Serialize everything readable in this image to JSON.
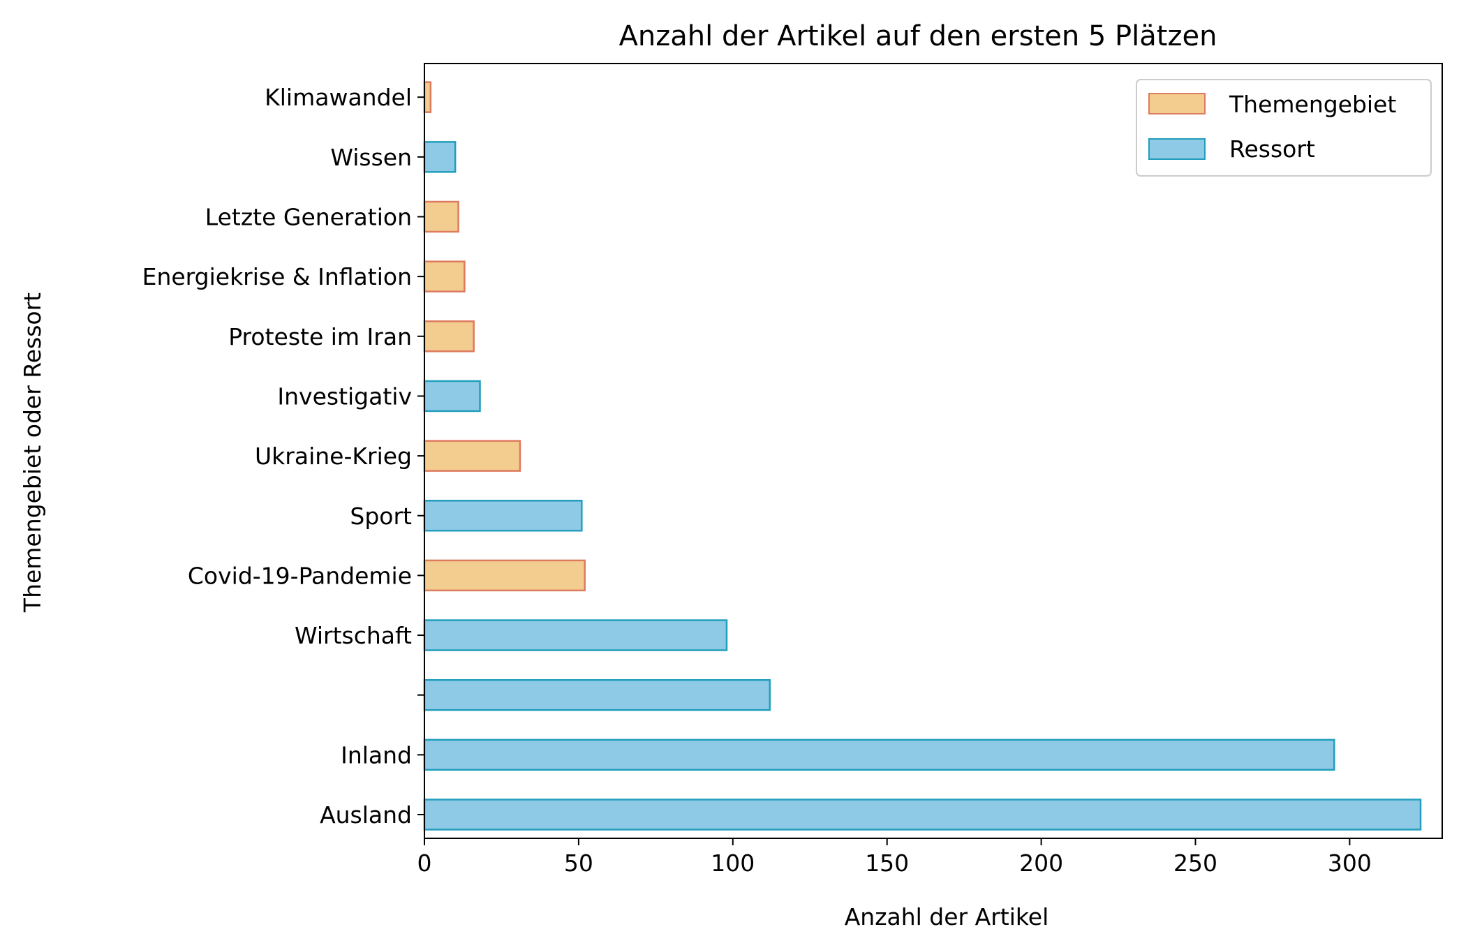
{
  "chart_data": {
    "type": "bar",
    "orientation": "horizontal",
    "title": "Anzahl der Artikel auf den ersten 5 Plätzen",
    "xlabel": "Anzahl der Artikel",
    "ylabel": "Themengebiet oder Ressort",
    "xlim": [
      0,
      340
    ],
    "xticks": [
      0,
      50,
      100,
      150,
      200,
      250,
      300
    ],
    "grid": false,
    "legend_position": "top-right",
    "categories": [
      "Ausland",
      "Inland",
      "",
      "Wirtschaft",
      "Covid-19-Pandemie",
      "Sport",
      "Ukraine-Krieg",
      "Investigativ",
      "Proteste im Iran",
      "Energiekrise & Inflation",
      "Letzte Generation",
      "Wissen",
      "Klimawandel"
    ],
    "values": [
      323,
      295,
      112,
      98,
      52,
      51,
      31,
      18,
      16,
      13,
      11,
      10,
      2
    ],
    "groups": [
      "Ressort",
      "Ressort",
      "Ressort",
      "Ressort",
      "Themengebiet",
      "Ressort",
      "Themengebiet",
      "Ressort",
      "Themengebiet",
      "Themengebiet",
      "Themengebiet",
      "Ressort",
      "Themengebiet"
    ],
    "series": [
      {
        "name": "Themengebiet",
        "fill": "#f3cc8f",
        "stroke": "#de7a5e"
      },
      {
        "name": "Ressort",
        "fill": "#8ecae6",
        "stroke": "#219ebc"
      }
    ]
  }
}
